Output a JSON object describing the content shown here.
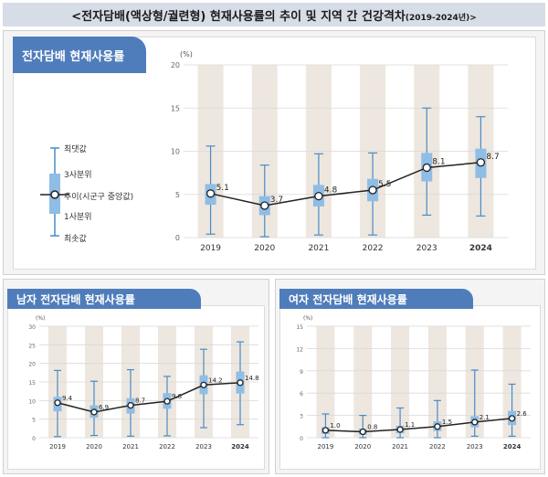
{
  "page": {
    "title": "<전자담배(액상형/궐련형) 현재사용률의 추이 및 지역 간 건강격차",
    "title_years": "(2019-2024년)>"
  },
  "panels": {
    "total": {
      "tab_label": "전자담배 현재사용률"
    },
    "male": {
      "tab_label": "남자 전자담배 현재사용률"
    },
    "female": {
      "tab_label": "여자 전자담배 현재사용률"
    }
  },
  "legend": {
    "max_label": "최댓값",
    "q3_label": "3사분위",
    "median_label": "추이(시군구 중앙값)",
    "q1_label": "1사분위",
    "min_label": "최솟값"
  },
  "colors": {
    "tab": "#4f7dbb",
    "box": "#8fbde6",
    "whisker": "#4a8bc7",
    "line": "#222222",
    "column_bg": "#ede7df"
  },
  "chart_data": [
    {
      "id": "total",
      "type": "boxplot-line",
      "unit_label": "(%)",
      "x": [
        "2019",
        "2020",
        "2021",
        "2022",
        "2023",
        "2024"
      ],
      "ylim": [
        0,
        20
      ],
      "yticks": [
        0,
        5,
        10,
        15,
        20
      ],
      "median": [
        5.1,
        3.7,
        4.8,
        5.5,
        8.1,
        8.7
      ],
      "q1": [
        3.8,
        2.6,
        3.6,
        4.2,
        6.5,
        6.9
      ],
      "q3": [
        6.2,
        4.8,
        6.1,
        6.8,
        9.8,
        10.3
      ],
      "min": [
        0.4,
        0.1,
        0.3,
        0.3,
        2.6,
        2.5
      ],
      "max": [
        10.6,
        8.4,
        9.7,
        9.8,
        15.0,
        14.0
      ],
      "labels": [
        "5.1",
        "3.7",
        "4.8",
        "5.5",
        "8.1",
        "8.7"
      ],
      "bold_last_tick": true
    },
    {
      "id": "male",
      "type": "boxplot-line",
      "unit_label": "(%)",
      "x": [
        "2019",
        "2020",
        "2021",
        "2022",
        "2023",
        "2024"
      ],
      "ylim": [
        0,
        30
      ],
      "yticks": [
        0,
        5,
        10,
        15,
        20,
        25,
        30
      ],
      "median": [
        9.4,
        6.9,
        8.7,
        9.8,
        14.2,
        14.8
      ],
      "q1": [
        7.1,
        5.4,
        6.5,
        7.8,
        11.7,
        11.9
      ],
      "q3": [
        11.0,
        8.7,
        10.6,
        12.0,
        16.8,
        17.8
      ],
      "min": [
        0.3,
        0.6,
        0.4,
        0.5,
        2.7,
        3.5
      ],
      "max": [
        18.1,
        15.2,
        18.3,
        16.5,
        23.8,
        25.8
      ],
      "labels": [
        "9.4",
        "6.9",
        "8.7",
        "9.8",
        "14.2",
        "14.8"
      ],
      "bold_last_tick": true
    },
    {
      "id": "female",
      "type": "boxplot-line",
      "unit_label": "(%)",
      "x": [
        "2019",
        "2020",
        "2021",
        "2022",
        "2023",
        "2024"
      ],
      "ylim": [
        0,
        15
      ],
      "yticks": [
        0,
        3,
        6,
        9,
        12,
        15
      ],
      "median": [
        1.0,
        0.8,
        1.1,
        1.5,
        2.1,
        2.6
      ],
      "q1": [
        0.5,
        0.4,
        0.6,
        0.9,
        1.4,
        1.7
      ],
      "q3": [
        1.4,
        1.2,
        1.6,
        2.2,
        2.9,
        3.6
      ],
      "min": [
        0.0,
        0.0,
        0.0,
        0.0,
        0.2,
        0.2
      ],
      "max": [
        3.2,
        3.0,
        4.0,
        5.0,
        9.1,
        7.2
      ],
      "labels": [
        "1.0",
        "0.8",
        "1.1",
        "1.5",
        "2.1",
        "2.6"
      ],
      "bold_last_tick": true
    }
  ]
}
